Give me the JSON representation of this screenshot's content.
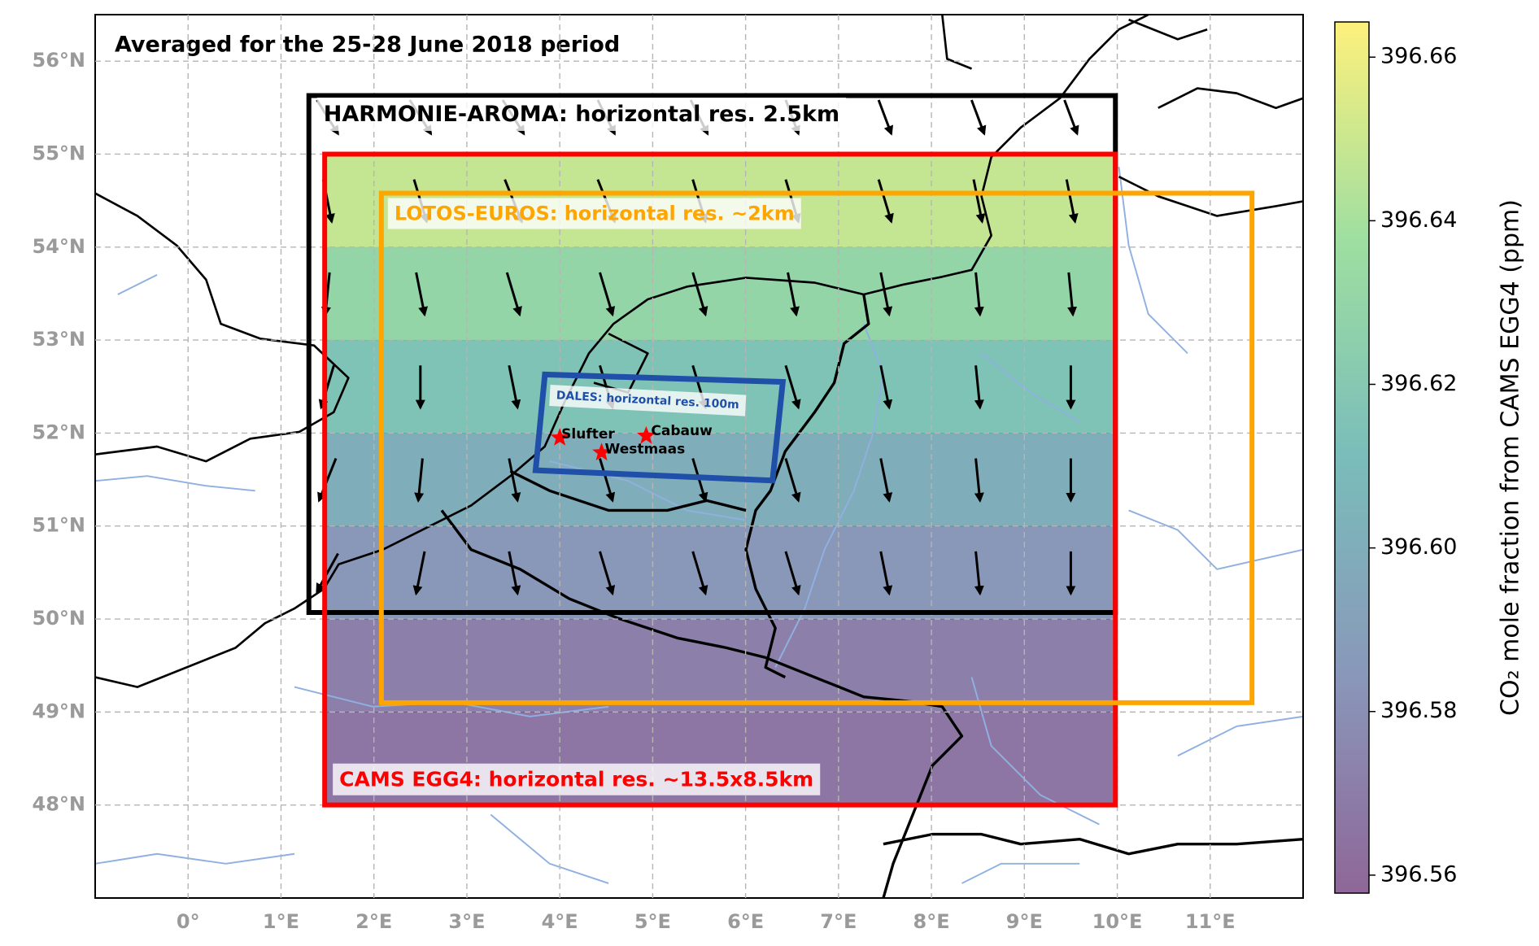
{
  "chart_data": {
    "type": "map",
    "title": "Averaged for the 25-28 June 2018 period",
    "xlim": [
      -1,
      12
    ],
    "ylim": [
      47,
      56.5
    ],
    "xticks": [
      {
        "value": 0,
        "label": "0°"
      },
      {
        "value": 1,
        "label": "1°E"
      },
      {
        "value": 2,
        "label": "2°E"
      },
      {
        "value": 3,
        "label": "3°E"
      },
      {
        "value": 4,
        "label": "4°E"
      },
      {
        "value": 5,
        "label": "5°E"
      },
      {
        "value": 6,
        "label": "6°E"
      },
      {
        "value": 7,
        "label": "7°E"
      },
      {
        "value": 8,
        "label": "8°E"
      },
      {
        "value": 9,
        "label": "9°E"
      },
      {
        "value": 10,
        "label": "10°E"
      },
      {
        "value": 11,
        "label": "11°E"
      }
    ],
    "yticks": [
      {
        "value": 48,
        "label": "48°N"
      },
      {
        "value": 49,
        "label": "49°N"
      },
      {
        "value": 50,
        "label": "50°N"
      },
      {
        "value": 51,
        "label": "51°N"
      },
      {
        "value": 52,
        "label": "52°N"
      },
      {
        "value": 53,
        "label": "53°N"
      },
      {
        "value": 54,
        "label": "54°N"
      },
      {
        "value": 55,
        "label": "55°N"
      },
      {
        "value": 56,
        "label": "56°N"
      }
    ],
    "grid": true,
    "field": {
      "colormap": "viridis",
      "lon_range": [
        1.47,
        9.98
      ],
      "lat_edges": [
        48,
        49,
        50,
        51,
        52,
        53,
        54,
        55
      ],
      "values": [
        396.566,
        396.572,
        396.585,
        396.6,
        396.615,
        396.63,
        396.648
      ]
    },
    "colorbar": {
      "label": "CO₂ mole fraction from CAMS EGG4 (ppm)",
      "lim": [
        396.5578,
        396.6643
      ],
      "ticks": [
        396.56,
        396.58,
        {
          "value": 396.6,
          "label": "396.60"
        },
        396.62,
        396.64,
        396.66
      ]
    },
    "wind": {
      "lon": [
        1.5,
        2.5,
        3.5,
        4.5,
        5.5,
        6.5,
        7.5,
        8.5,
        9.5
      ],
      "lat": [
        50.5,
        51.5,
        52.5,
        53.5,
        54.5,
        55.4
      ],
      "u": [
        [
          -0.5,
          -0.2,
          0.2,
          0.3,
          0.3,
          0.3,
          0.2,
          0.1,
          0
        ],
        [
          -0.4,
          -0.1,
          0.2,
          0.3,
          0.3,
          0.3,
          0.2,
          0.1,
          0
        ],
        [
          -0.3,
          0,
          0.2,
          0.3,
          0.3,
          0.3,
          0.2,
          0.1,
          0
        ],
        [
          -0.1,
          0.2,
          0.3,
          0.3,
          0.3,
          0.2,
          0.2,
          0.1,
          0.1
        ],
        [
          0.2,
          0.3,
          0.4,
          0.4,
          0.3,
          0.3,
          0.3,
          0.2,
          0.2
        ],
        [
          0.5,
          0.5,
          0.5,
          0.4,
          0.4,
          0.3,
          0.3,
          0.3,
          0.3
        ]
      ],
      "v": [
        [
          -0.9,
          -1,
          -1,
          -1,
          -1,
          -1,
          -1,
          -1,
          -1
        ],
        [
          -1,
          -1,
          -1,
          -1,
          -1,
          -1,
          -1,
          -1,
          -1
        ],
        [
          -1,
          -1,
          -1,
          -1,
          -1,
          -1,
          -1,
          -1,
          -1
        ],
        [
          -1,
          -1,
          -1,
          -1,
          -1,
          -1,
          -1,
          -1,
          -1
        ],
        [
          -1,
          -1,
          -1,
          -1,
          -1,
          -1,
          -1,
          -1,
          -1
        ],
        [
          -0.8,
          -0.8,
          -0.8,
          -0.8,
          -0.8,
          -0.8,
          -0.8,
          -0.8,
          -0.8
        ]
      ]
    },
    "domains": [
      {
        "name": "HARMONIE-AROMA: horizontal res. 2.5km",
        "color": "#000000",
        "lon": [
          1.3,
          9.98,
          9.98,
          1.3
        ],
        "lat": [
          55.63,
          55.63,
          50.07,
          50.07
        ]
      },
      {
        "name": "CAMS EGG4: horizontal res. ~13.5x8.5km",
        "color": "#ff0000",
        "lon": [
          1.47,
          9.98,
          9.98,
          1.47
        ],
        "lat": [
          55,
          55,
          48,
          48
        ]
      },
      {
        "name": "LOTOS-EUROS: horizontal res. ~2km",
        "color": "#ffa500",
        "lon": [
          2.08,
          11.45,
          11.45,
          2.08
        ],
        "lat": [
          54.58,
          54.58,
          49.1,
          49.1
        ]
      },
      {
        "name": "DALES: horizontal res. 100m",
        "color": "#1f4fa8",
        "lon": [
          3.84,
          6.4,
          6.29,
          3.74
        ],
        "lat": [
          52.63,
          52.55,
          51.49,
          51.6
        ]
      }
    ],
    "sites": {
      "names": [
        "Slufter",
        "Cabauw",
        "Westmaas"
      ],
      "lon": [
        4.0,
        4.93,
        4.45
      ],
      "lat": [
        51.95,
        51.97,
        51.79
      ],
      "color": "#ff0000"
    }
  }
}
